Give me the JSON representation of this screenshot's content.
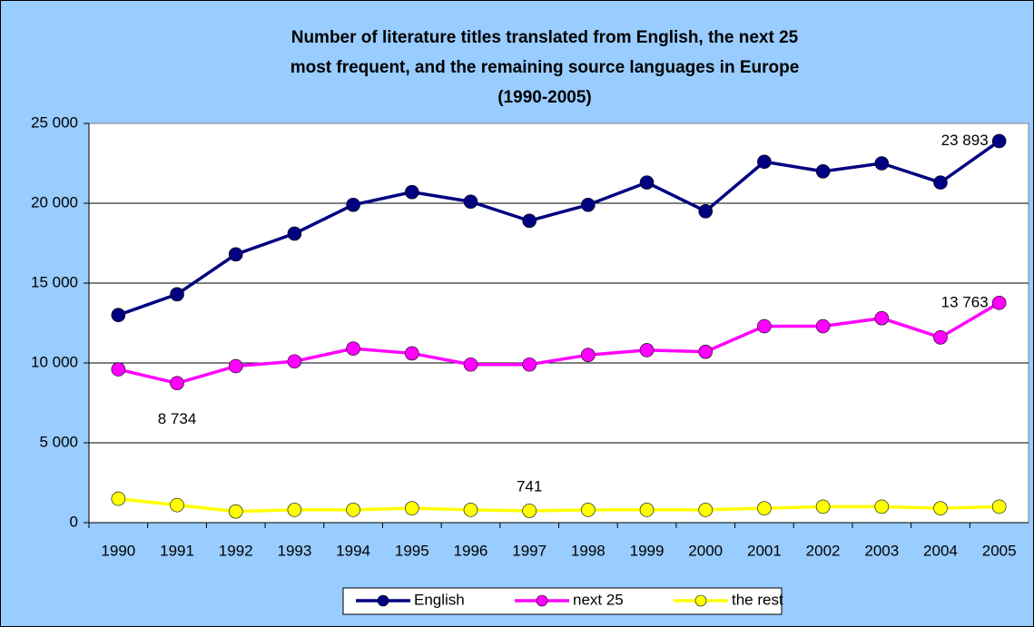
{
  "chart_data": {
    "type": "line",
    "title": [
      "Number of literature titles translated from English, the next 25",
      "most frequent, and the remaining source languages in Europe",
      "(1990-2005)"
    ],
    "categories": [
      "1990",
      "1991",
      "1992",
      "1993",
      "1994",
      "1995",
      "1996",
      "1997",
      "1998",
      "1999",
      "2000",
      "2001",
      "2002",
      "2003",
      "2004",
      "2005"
    ],
    "series": [
      {
        "name": "English",
        "color": "#000080",
        "values": [
          13000,
          14300,
          16800,
          18100,
          19900,
          20700,
          20100,
          18900,
          19900,
          21300,
          19500,
          22600,
          22000,
          22500,
          21300,
          23893
        ],
        "value_labels": [
          null,
          null,
          null,
          null,
          null,
          null,
          null,
          null,
          null,
          null,
          null,
          null,
          null,
          null,
          null,
          "23 893"
        ]
      },
      {
        "name": "next 25",
        "color": "#ff00ff",
        "values": [
          9600,
          8734,
          9800,
          10100,
          10900,
          10600,
          9900,
          9900,
          10500,
          10800,
          10700,
          12300,
          12300,
          12800,
          11600,
          13763
        ],
        "value_labels": [
          null,
          "8 734",
          null,
          null,
          null,
          null,
          null,
          null,
          null,
          null,
          null,
          null,
          null,
          null,
          null,
          "13 763"
        ]
      },
      {
        "name": "the rest",
        "color": "#ffff00",
        "values": [
          1500,
          1100,
          700,
          800,
          800,
          900,
          800,
          741,
          800,
          800,
          800,
          900,
          1000,
          1000,
          900,
          1000
        ],
        "value_labels": [
          null,
          null,
          null,
          null,
          null,
          null,
          null,
          "741",
          null,
          null,
          null,
          null,
          null,
          null,
          null,
          null
        ]
      }
    ],
    "ylim": [
      0,
      25000
    ],
    "yticks": [
      0,
      {
        "value": 5000,
        "label": "5 000"
      },
      {
        "value": 10000,
        "label": "10 000"
      },
      {
        "value": 15000,
        "label": "15 000"
      },
      {
        "value": 20000,
        "label": "20 000"
      },
      {
        "value": 25000,
        "label": "25 000"
      }
    ],
    "grid": true,
    "legend": "bottom"
  }
}
